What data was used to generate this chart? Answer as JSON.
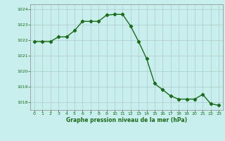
{
  "x": [
    0,
    1,
    2,
    3,
    4,
    5,
    6,
    7,
    8,
    9,
    10,
    11,
    12,
    13,
    14,
    15,
    16,
    17,
    18,
    19,
    20,
    21,
    22,
    23
  ],
  "y": [
    1021.9,
    1021.9,
    1021.9,
    1022.2,
    1022.2,
    1022.6,
    1023.2,
    1023.2,
    1023.2,
    1023.6,
    1023.65,
    1023.65,
    1022.9,
    1021.9,
    1020.8,
    1019.2,
    1018.8,
    1018.4,
    1018.2,
    1018.2,
    1018.2,
    1018.5,
    1017.9,
    1017.8
  ],
  "line_color": "#1a6b1a",
  "marker": "D",
  "marker_size": 2.2,
  "bg_color": "#c9eeee",
  "grid_color": "#b0c8c8",
  "xlabel": "Graphe pression niveau de la mer (hPa)",
  "xlabel_color": "#1a6b1a",
  "tick_color": "#1a6b1a",
  "ylim": [
    1017.5,
    1024.3
  ],
  "yticks": [
    1018,
    1019,
    1020,
    1021,
    1022,
    1023,
    1024
  ],
  "xticks": [
    0,
    1,
    2,
    3,
    4,
    5,
    6,
    7,
    8,
    9,
    10,
    11,
    12,
    13,
    14,
    15,
    16,
    17,
    18,
    19,
    20,
    21,
    22,
    23
  ],
  "linewidth": 1.0
}
